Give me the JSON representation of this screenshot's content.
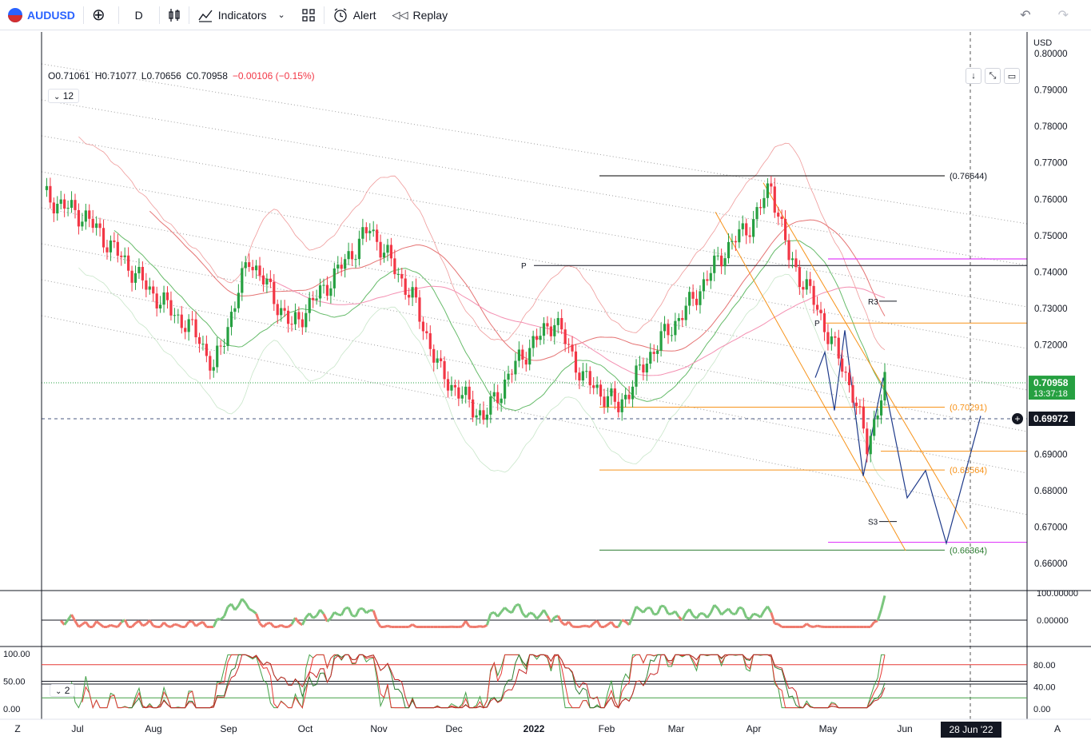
{
  "toolbar": {
    "symbol": "AUDUSD",
    "interval": "D",
    "indicators_label": "Indicators",
    "alert_label": "Alert",
    "replay_label": "Replay"
  },
  "legend": {
    "open": "O0.71061",
    "high": "H0.71077",
    "low": "L0.70656",
    "close": "C0.70958",
    "change": "−0.00106 (−0.15%)",
    "indicator_count": "12"
  },
  "oscillator2_badge": "2",
  "corner_left": "Z",
  "corner_right": "A",
  "currency": "USD",
  "colors": {
    "up": "#26a041",
    "down": "#f23645",
    "accent": "#2962ff",
    "fib": "#f7931a",
    "magenta": "#e040fb"
  },
  "chart_data": {
    "type": "candlestick",
    "symbol": "AUDUSD",
    "interval": "D",
    "last_price": "0.70958",
    "countdown": "13:37:18",
    "cursor_price": "0.69972",
    "cursor_date": "28 Jun '22",
    "ylim": [
      0.655,
      0.8
    ],
    "y_ticks": [
      "0.80000",
      "0.79000",
      "0.78000",
      "0.77000",
      "0.76000",
      "0.75000",
      "0.74000",
      "0.73000",
      "0.72000",
      "0.71000",
      "0.70000",
      "0.69000",
      "0.68000",
      "0.67000",
      "0.66000"
    ],
    "x_ticks": [
      "Jul",
      "Aug",
      "Sep",
      "Oct",
      "Nov",
      "Dec",
      "2022",
      "Feb",
      "Mar",
      "Apr",
      "May",
      "Jun"
    ],
    "fib_levels": [
      {
        "label": "(0.76644)",
        "value": 0.76644,
        "color": "#000000"
      },
      {
        "label": "(0.70291)",
        "value": 0.70291,
        "color": "#f7931a"
      },
      {
        "label": "(0.68564)",
        "value": 0.68564,
        "color": "#f7931a"
      },
      {
        "label": "(0.66364)",
        "value": 0.66364,
        "color": "#2e7d32"
      }
    ],
    "pivot_labels": [
      {
        "label": "P",
        "value": 0.7418
      },
      {
        "label": "R3",
        "value": 0.732
      },
      {
        "label": "P",
        "value": 0.726
      },
      {
        "label": "S3",
        "value": 0.6715
      }
    ],
    "osc1": {
      "ticks": [
        "100.00000",
        "0.00000"
      ],
      "range": [
        -30,
        100
      ]
    },
    "osc2": {
      "left_ticks": [
        "100.00",
        "50.00",
        "0.00"
      ],
      "right_ticks": [
        "80.00",
        "40.00",
        "0.00"
      ],
      "levels": [
        80,
        50,
        45,
        20
      ],
      "range": [
        0,
        100
      ]
    }
  }
}
